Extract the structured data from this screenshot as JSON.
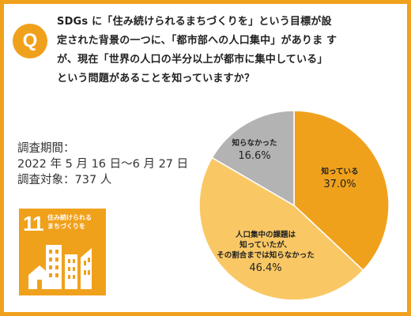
{
  "question": {
    "badge": "Q",
    "lines": [
      "SDGs に「住み続けられるまちづくりを」という目標が設",
      "定された背景の一つに、「都市部への人口集中」がありま す",
      "が、現在「世界の人口の半分以上が都市に集中している」",
      "という問題があることを知っていますか？"
    ]
  },
  "survey": {
    "period_label": "調査期間：",
    "period": "2022 年 5 月 16 日〜6 月 27 日",
    "target": "調査対象：737 人"
  },
  "sdg": {
    "number": "11",
    "title_lines": [
      "住み続けられる",
      "まちづくりを"
    ],
    "icon": "city-buildings-icon"
  },
  "chart_data": {
    "type": "pie",
    "start_angle_deg": 0,
    "direction": "clockwise",
    "slices": [
      {
        "label_lines": [
          "知っている"
        ],
        "value": 37.0,
        "value_label": "37.0%",
        "color": "#f0a11c"
      },
      {
        "label_lines": [
          "人口集中の課題は",
          "知っていたが、",
          "その割合までは知らなかった"
        ],
        "value": 46.4,
        "value_label": "46.4%",
        "color": "#f9c865"
      },
      {
        "label_lines": [
          "知らなかった"
        ],
        "value": 16.6,
        "value_label": "16.6%",
        "color": "#b3b3b3"
      }
    ]
  },
  "colors": {
    "accent": "#f0a11c",
    "text": "#222222"
  }
}
